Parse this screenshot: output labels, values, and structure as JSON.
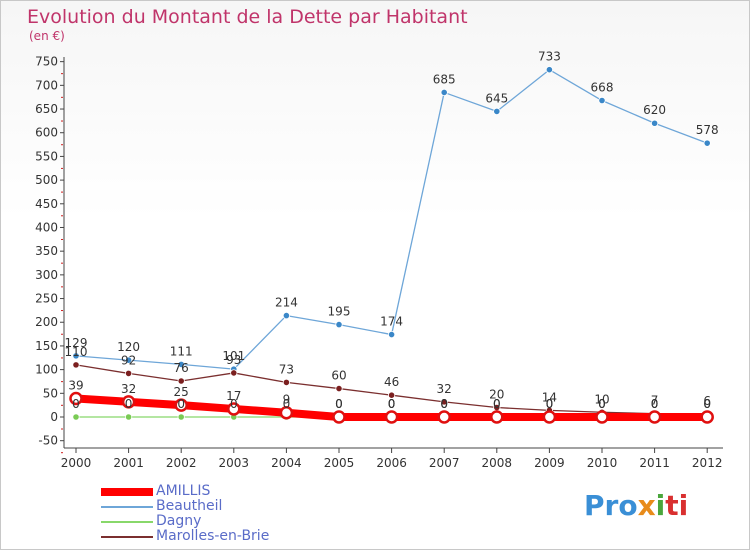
{
  "chart_data": {
    "type": "line",
    "title": "Evolution du Montant de la Dette par Habitant",
    "unit_label": "(en €)",
    "x": [
      "2000",
      "2001",
      "2002",
      "2003",
      "2004",
      "2005",
      "2006",
      "2007",
      "2008",
      "2009",
      "2010",
      "2011",
      "2012"
    ],
    "ylim": [
      -50,
      750
    ],
    "yticks": [
      -50,
      0,
      50,
      100,
      150,
      200,
      250,
      300,
      350,
      400,
      450,
      500,
      550,
      600,
      650,
      700,
      750
    ],
    "grid": false,
    "legend_position": "bottom-left",
    "series": [
      {
        "name": "AMILLIS",
        "color": "#ff0000",
        "marker": "#e01010",
        "values": [
          39,
          32,
          25,
          17,
          9,
          0,
          0,
          0,
          0,
          0,
          0,
          0,
          0
        ]
      },
      {
        "name": "Beautheil",
        "color": "#6ea6d8",
        "marker": "#3a87c8",
        "values": [
          129,
          120,
          111,
          101,
          214,
          195,
          174,
          685,
          645,
          733,
          668,
          620,
          578
        ]
      },
      {
        "name": "Dagny",
        "color": "#88d86a",
        "marker": "#7acb55",
        "values": [
          0,
          0,
          0,
          0,
          0,
          0,
          0,
          0,
          0,
          0,
          0,
          0,
          0
        ]
      },
      {
        "name": "Marolles-en-Brie",
        "color": "#7b2f2f",
        "marker": "#7b1f1f",
        "values": [
          110,
          92,
          76,
          93,
          73,
          60,
          46,
          32,
          20,
          14,
          10,
          7,
          6
        ]
      }
    ]
  },
  "logo": {
    "p1": "Pro",
    "p2": "x",
    "p3": "i",
    "p4": "ti"
  }
}
